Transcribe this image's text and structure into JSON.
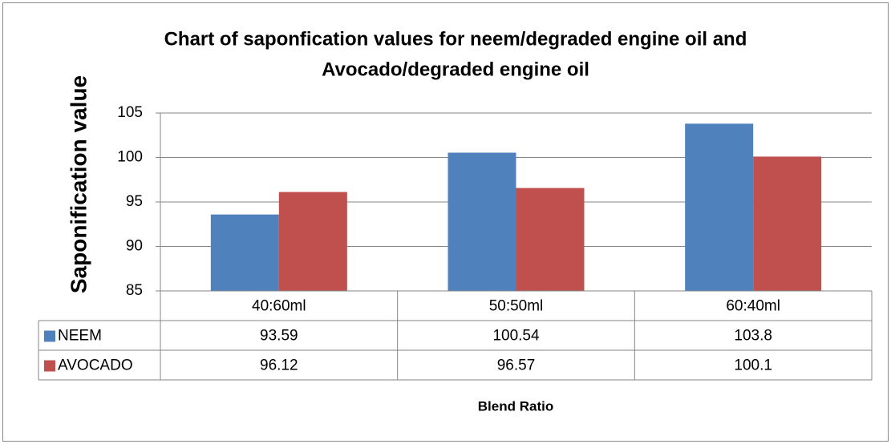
{
  "chart_data": {
    "type": "bar",
    "title": "Chart of saponfication values for neem/degraded engine oil and",
    "title_line2": "Avocado/degraded engine oil",
    "y_label": "Saponification value",
    "x_label": "Blend Ratio",
    "categories": [
      "40:60ml",
      "50:50ml",
      "60:40ml"
    ],
    "series": [
      {
        "name": "NEEM",
        "color": "#4f81bd",
        "values": [
          93.59,
          100.54,
          103.8
        ]
      },
      {
        "name": "AVOCADO",
        "color": "#c0504d",
        "values": [
          96.12,
          96.57,
          100.1
        ]
      }
    ],
    "ylim": [
      85,
      105
    ],
    "yticks": [
      85,
      90,
      95,
      100,
      105
    ],
    "grid": true,
    "data_table": true
  }
}
